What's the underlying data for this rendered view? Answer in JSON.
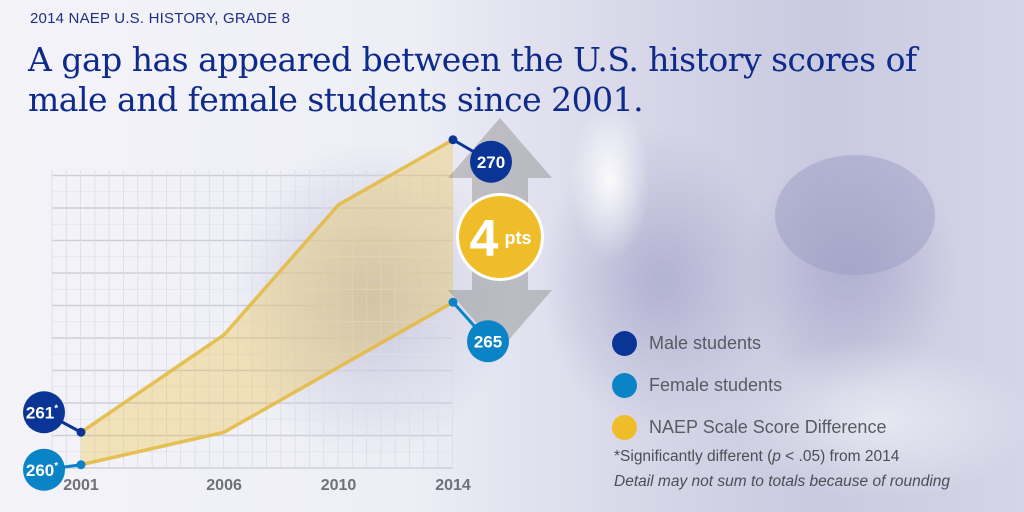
{
  "header": {
    "kicker": "2014 NAEP U.S. HISTORY, GRADE 8",
    "title": "A gap has appeared between the U.S. history scores of male and female students since 2001."
  },
  "chart_data": {
    "type": "line",
    "title": "A gap has appeared between the U.S. history scores of male and female students since 2001.",
    "x": [
      2001,
      2006,
      2010,
      2014
    ],
    "x_tick_labels": [
      "2001",
      "2006",
      "2010",
      "2014"
    ],
    "ylim": [
      259.9,
      270
    ],
    "grid": true,
    "legend_position": "right",
    "series": [
      {
        "name": "Male students",
        "color": "#0a3596",
        "values": [
          261,
          264,
          268,
          270
        ],
        "point_labels": [
          {
            "index": 0,
            "text": "261",
            "mark": "*"
          },
          {
            "index": 3,
            "text": "270",
            "mark": ""
          }
        ]
      },
      {
        "name": "Female students",
        "color": "#0a84c6",
        "values": [
          260,
          261,
          263,
          265
        ],
        "point_labels": [
          {
            "index": 0,
            "text": "260",
            "mark": "*"
          },
          {
            "index": 3,
            "text": "265",
            "mark": ""
          }
        ]
      }
    ],
    "difference": {
      "name": "NAEP Scale Score Difference",
      "color": "#f0bd2a",
      "value": "4",
      "unit": "pts"
    }
  },
  "legend": [
    {
      "label": "Male students",
      "color": "#0a3596"
    },
    {
      "label": "Female students",
      "color": "#0a84c6"
    },
    {
      "label": "NAEP Scale Score Difference",
      "color": "#f0bd2a"
    }
  ],
  "notes": {
    "significance_pre": "*Significantly different (",
    "significance_p": "p",
    "significance_post": " < .05) from 2014",
    "rounding": "Detail may not sum to totals because of rounding"
  }
}
